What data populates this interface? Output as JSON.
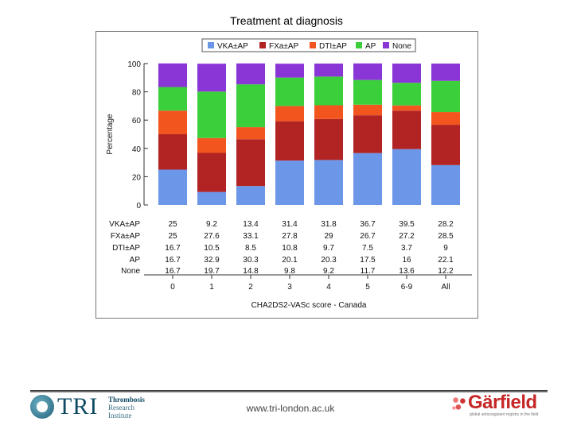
{
  "slide": {
    "title": "Treatment at diagnosis",
    "footer_url": "www.tri-london.ac.uk"
  },
  "logos": {
    "tri_main": "TRI",
    "tri_sub": [
      "Thrombosis",
      "Research",
      "Institute"
    ],
    "garfield_name": "Gärfield",
    "garfield_tagline": "global anticoagulant registry in the field"
  },
  "chart_data": {
    "type": "bar",
    "stacked": true,
    "title": "Treatment at diagnosis",
    "xlabel": "CHA2DS2-VASc score - Canada",
    "ylabel": "Percentage",
    "ylim": [
      0,
      100
    ],
    "yticks": [
      0,
      20,
      40,
      60,
      80,
      100
    ],
    "categories": [
      "0",
      "1",
      "2",
      "3",
      "4",
      "5",
      "6-9",
      "All"
    ],
    "legend_position": "top",
    "series": [
      {
        "name": "VKA±AP",
        "color": "#6c96e8",
        "values": [
          25,
          9.2,
          13.4,
          31.4,
          31.8,
          36.7,
          39.5,
          28.2
        ]
      },
      {
        "name": "FXa±AP",
        "color": "#b22424",
        "values": [
          25,
          27.6,
          33.1,
          27.8,
          29,
          26.7,
          27.2,
          28.5
        ]
      },
      {
        "name": "DTI±AP",
        "color": "#f2551d",
        "values": [
          16.7,
          10.5,
          8.5,
          10.8,
          9.7,
          7.5,
          3.7,
          9
        ]
      },
      {
        "name": "AP",
        "color": "#3ccf3c",
        "values": [
          16.7,
          32.9,
          30.3,
          20.1,
          20.3,
          17.5,
          16,
          22.1
        ]
      },
      {
        "name": "None",
        "color": "#8a35d6",
        "values": [
          16.7,
          19.7,
          14.8,
          9.8,
          9.2,
          11.7,
          13.6,
          12.2
        ]
      }
    ],
    "table_labels": [
      "VKA±AP",
      "FXa±AP",
      "DTI±AP",
      "AP",
      "None"
    ],
    "table_rows": [
      [
        "25",
        "9.2",
        "13.4",
        "31.4",
        "31.8",
        "36.7",
        "39.5",
        "28.2"
      ],
      [
        "25",
        "27.6",
        "33.1",
        "27.8",
        "29",
        "26.7",
        "27.2",
        "28.5"
      ],
      [
        "16.7",
        "10.5",
        "8.5",
        "10.8",
        "9.7",
        "7.5",
        "3.7",
        "9"
      ],
      [
        "16.7",
        "32.9",
        "30.3",
        "20.1",
        "20.3",
        "17.5",
        "16",
        "22.1"
      ],
      [
        "16.7",
        "19.7",
        "14.8",
        "9.8",
        "9.2",
        "11.7",
        "13.6",
        "12.2"
      ]
    ]
  }
}
